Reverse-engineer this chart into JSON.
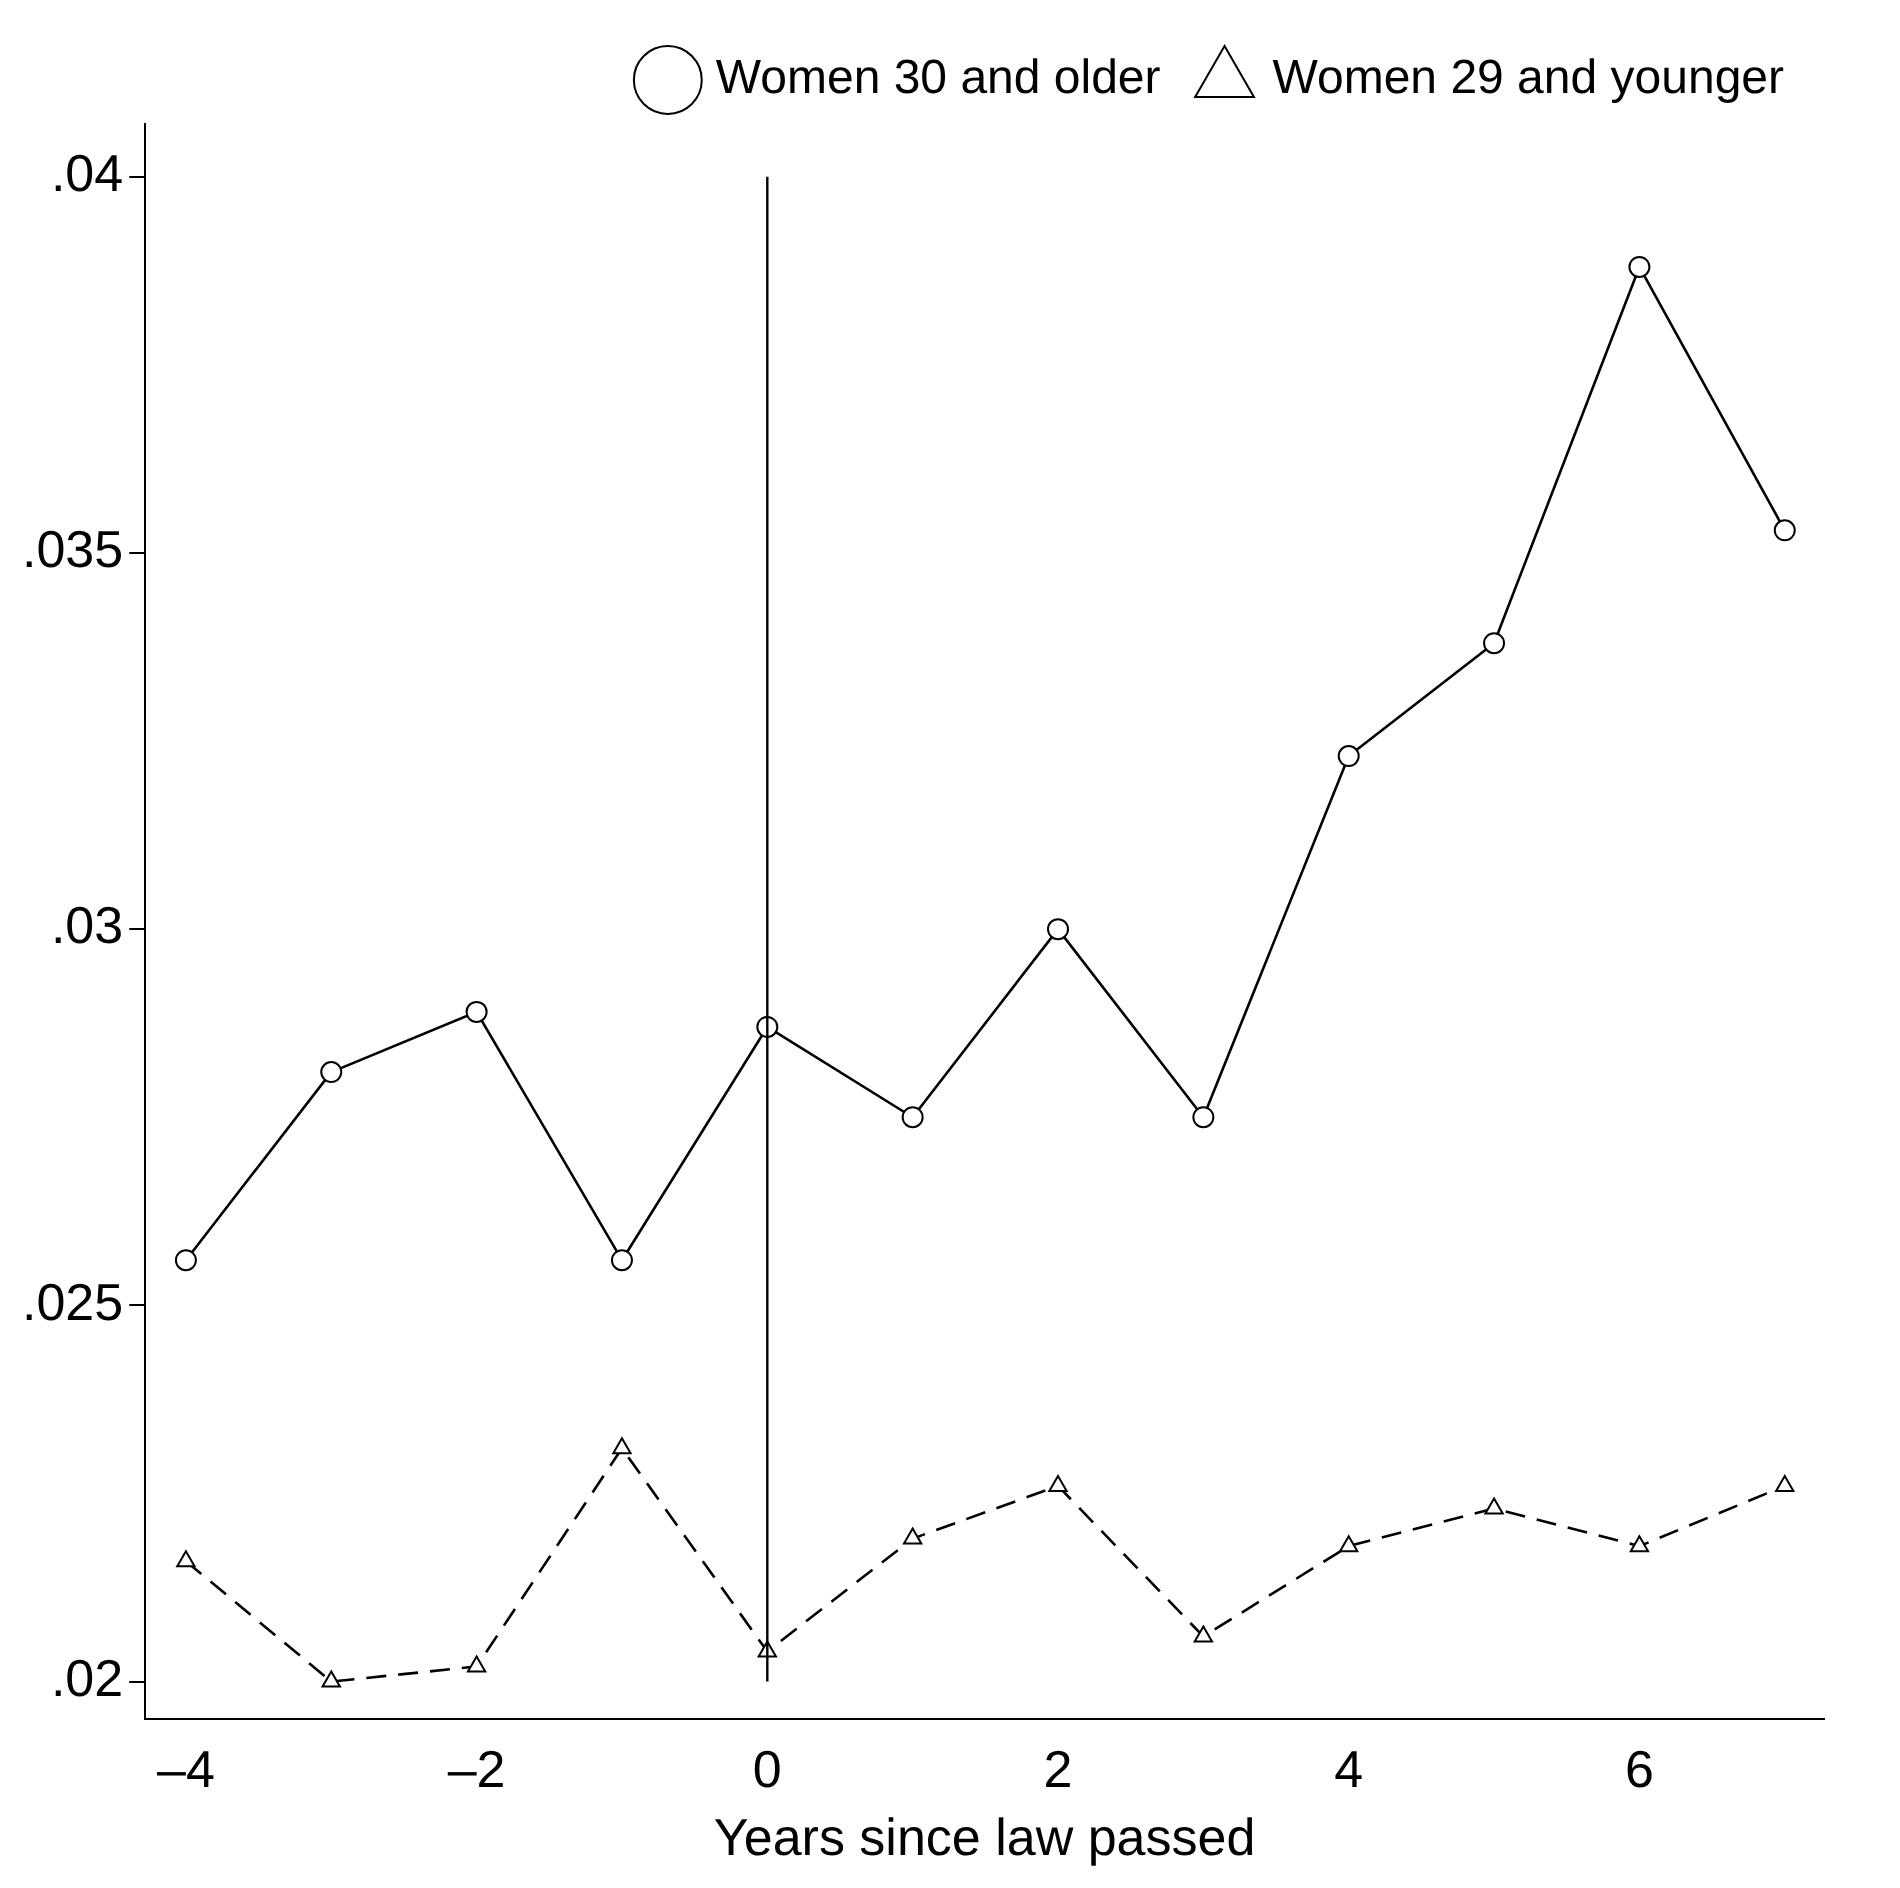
{
  "chart_data": {
    "type": "line",
    "xlabel": "Years since law passed",
    "x": [
      -4,
      -3,
      -2,
      -1,
      0,
      1,
      2,
      3,
      4,
      5,
      6,
      7
    ],
    "series": [
      {
        "name": "Women 30 and older",
        "color": "#000000",
        "marker": "circle",
        "line_style": "solid",
        "values": [
          0.0256,
          0.0281,
          0.0289,
          0.0256,
          0.0287,
          0.0275,
          0.03,
          0.0275,
          0.0323,
          0.0338,
          0.0388,
          0.0353
        ]
      },
      {
        "name": "Women 29 and younger",
        "color": "#000000",
        "marker": "triangle",
        "line_style": "dashed",
        "values": [
          0.0216,
          0.02,
          0.0202,
          0.0231,
          0.0204,
          0.0219,
          0.0226,
          0.0206,
          0.0218,
          0.0223,
          0.0218,
          0.0226
        ]
      }
    ],
    "xlim": [
      -4.28,
      7.27
    ],
    "xticks": [
      {
        "value": -4,
        "label": "–4"
      },
      {
        "value": -2,
        "label": "–2"
      },
      0,
      2,
      4,
      6
    ],
    "ylim": [
      0.0195,
      0.0407
    ],
    "yticks": [
      {
        "value": 0.02,
        "label": ".02"
      },
      {
        "value": 0.025,
        "label": ".025"
      },
      {
        "value": 0.03,
        "label": ".03"
      },
      {
        "value": 0.035,
        "label": ".035"
      },
      {
        "value": 0.04,
        "label": ".04"
      }
    ],
    "ref_lines": [
      {
        "axis": "x",
        "value": 0,
        "color": "#000000"
      }
    ],
    "grid": false,
    "legend": "top"
  }
}
